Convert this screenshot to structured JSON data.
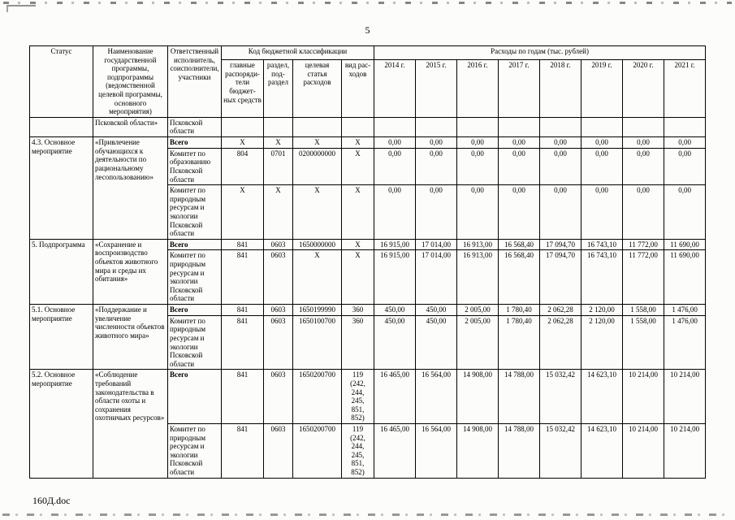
{
  "page": {
    "number": "5",
    "footer": "160Д.doc"
  },
  "table": {
    "header": {
      "status": "Статус",
      "program": "Наименование государственной программы, подпрограммы (ведомственной целевой программы, основного мероприятия)",
      "executor": "Ответственный исполнитель, соисполнители, участники",
      "budget_code_title": "Код бюджетной классификации",
      "budget_subcols": [
        "главные распоряди-тели бюджет-ных средств",
        "раздел, под-раздел",
        "целевая статья расходов",
        "вид рас-ходов"
      ],
      "expenses_title": "Расходы по годам (тыс. рублей)",
      "years": [
        "2014 г.",
        "2015 г.",
        "2016 г.",
        "2017 г.",
        "2018 г.",
        "2019 г.",
        "2020 г.",
        "2021 г."
      ]
    },
    "rows": [
      {
        "cells": [
          {
            "t": "",
            "cls": "txt"
          },
          {
            "t": "Псковской области»",
            "cls": "txt"
          },
          {
            "t": "Псковской области",
            "cls": "txt"
          },
          {
            "t": ""
          },
          {
            "t": ""
          },
          {
            "t": ""
          },
          {
            "t": ""
          },
          {
            "t": ""
          },
          {
            "t": ""
          },
          {
            "t": ""
          },
          {
            "t": ""
          },
          {
            "t": ""
          },
          {
            "t": ""
          },
          {
            "t": ""
          },
          {
            "t": ""
          }
        ]
      },
      {
        "cells": [
          {
            "t": "4.3. Основное мероприятие",
            "cls": "txt",
            "rs": 3
          },
          {
            "t": "«Привлечение обучающихся к деятельности по рациональному лесопользованию»",
            "cls": "txt",
            "rs": 3
          },
          {
            "t": "Всего",
            "cls": "txt bold"
          },
          {
            "t": "X"
          },
          {
            "t": "X"
          },
          {
            "t": "X"
          },
          {
            "t": "X"
          },
          {
            "t": "0,00"
          },
          {
            "t": "0,00"
          },
          {
            "t": "0,00"
          },
          {
            "t": "0,00"
          },
          {
            "t": "0,00"
          },
          {
            "t": "0,00"
          },
          {
            "t": "0,00"
          },
          {
            "t": "0,00"
          }
        ]
      },
      {
        "cells": [
          {
            "t": "Комитет по образованию Псковской области",
            "cls": "txt"
          },
          {
            "t": "804"
          },
          {
            "t": "0701"
          },
          {
            "t": "0200000000"
          },
          {
            "t": "X"
          },
          {
            "t": "0,00"
          },
          {
            "t": "0,00"
          },
          {
            "t": "0,00"
          },
          {
            "t": "0,00"
          },
          {
            "t": "0,00"
          },
          {
            "t": "0,00"
          },
          {
            "t": "0,00"
          },
          {
            "t": "0,00"
          }
        ]
      },
      {
        "cells": [
          {
            "t": "Комитет по природным ресурсам и экологии Псковской области",
            "cls": "txt"
          },
          {
            "t": "X"
          },
          {
            "t": "X"
          },
          {
            "t": "X"
          },
          {
            "t": "X"
          },
          {
            "t": "0,00"
          },
          {
            "t": "0,00"
          },
          {
            "t": "0,00"
          },
          {
            "t": "0,00"
          },
          {
            "t": "0,00"
          },
          {
            "t": "0,00"
          },
          {
            "t": "0,00"
          },
          {
            "t": "0,00"
          }
        ]
      },
      {
        "cells": [
          {
            "t": "5. Подпрограмма",
            "cls": "txt",
            "rs": 2
          },
          {
            "t": "«Сохранение и воспроизводство объектов животного мира и среды их обитания»",
            "cls": "txt",
            "rs": 2
          },
          {
            "t": "Всего",
            "cls": "txt bold"
          },
          {
            "t": "841"
          },
          {
            "t": "0603"
          },
          {
            "t": "1650000000"
          },
          {
            "t": "X"
          },
          {
            "t": "16 915,00"
          },
          {
            "t": "17 014,00"
          },
          {
            "t": "16 913,00"
          },
          {
            "t": "16 568,40"
          },
          {
            "t": "17 094,70"
          },
          {
            "t": "16 743,10"
          },
          {
            "t": "11 772,00"
          },
          {
            "t": "11 690,00"
          }
        ]
      },
      {
        "cells": [
          {
            "t": "Комитет по природным ресурсам и экологии Псковской области",
            "cls": "txt"
          },
          {
            "t": "841"
          },
          {
            "t": "0603"
          },
          {
            "t": "X"
          },
          {
            "t": "X"
          },
          {
            "t": "16 915,00"
          },
          {
            "t": "17 014,00"
          },
          {
            "t": "16 913,00"
          },
          {
            "t": "16 568,40"
          },
          {
            "t": "17 094,70"
          },
          {
            "t": "16 743,10"
          },
          {
            "t": "11 772,00"
          },
          {
            "t": "11 690,00"
          }
        ]
      },
      {
        "cells": [
          {
            "t": "5.1. Основное мероприятие",
            "cls": "txt",
            "rs": 2
          },
          {
            "t": "«Поддержание и увеличение численности объектов животного мира»",
            "cls": "txt",
            "rs": 2
          },
          {
            "t": "Всего",
            "cls": "txt bold"
          },
          {
            "t": "841"
          },
          {
            "t": "0603"
          },
          {
            "t": "1650199990"
          },
          {
            "t": "360"
          },
          {
            "t": "450,00"
          },
          {
            "t": "450,00"
          },
          {
            "t": "2 005,00"
          },
          {
            "t": "1 780,40"
          },
          {
            "t": "2 062,28"
          },
          {
            "t": "2 120,00"
          },
          {
            "t": "1 558,00"
          },
          {
            "t": "1 476,00"
          }
        ]
      },
      {
        "cells": [
          {
            "t": "Комитет по природным ресурсам и экологии Псковской области",
            "cls": "txt"
          },
          {
            "t": "841"
          },
          {
            "t": "0603"
          },
          {
            "t": "1650100700"
          },
          {
            "t": "360"
          },
          {
            "t": "450,00"
          },
          {
            "t": "450,00"
          },
          {
            "t": "2 005,00"
          },
          {
            "t": "1 780,40"
          },
          {
            "t": "2 062,28"
          },
          {
            "t": "2 120,00"
          },
          {
            "t": "1 558,00"
          },
          {
            "t": "1 476,00"
          }
        ]
      },
      {
        "cells": [
          {
            "t": "5.2. Основное мероприятие",
            "cls": "txt",
            "rs": 2
          },
          {
            "t": "«Соблюдение требований законодательства в области охоты и сохранения охотничьих ресурсов»",
            "cls": "txt",
            "rs": 2
          },
          {
            "t": "Всего",
            "cls": "txt bold"
          },
          {
            "t": "841"
          },
          {
            "t": "0603"
          },
          {
            "t": "1650200700"
          },
          {
            "t": "119\n(242,\n244,\n245,\n851,\n852)",
            "cls": "num pre"
          },
          {
            "t": "16 465,00"
          },
          {
            "t": "16 564,00"
          },
          {
            "t": "14 908,00"
          },
          {
            "t": "14 788,00"
          },
          {
            "t": "15 032,42"
          },
          {
            "t": "14 623,10"
          },
          {
            "t": "10 214,00"
          },
          {
            "t": "10 214,00"
          }
        ]
      },
      {
        "cells": [
          {
            "t": "Комитет по природным ресурсам и экологии Псковской области",
            "cls": "txt"
          },
          {
            "t": "841"
          },
          {
            "t": "0603"
          },
          {
            "t": "1650200700"
          },
          {
            "t": "119\n(242,\n244,\n245,\n851,\n852)",
            "cls": "num pre"
          },
          {
            "t": "16 465,00"
          },
          {
            "t": "16 564,00"
          },
          {
            "t": "14 908,00"
          },
          {
            "t": "14 788,00"
          },
          {
            "t": "15 032,42"
          },
          {
            "t": "14 623,10"
          },
          {
            "t": "10 214,00"
          },
          {
            "t": "10 214,00"
          }
        ]
      }
    ]
  }
}
